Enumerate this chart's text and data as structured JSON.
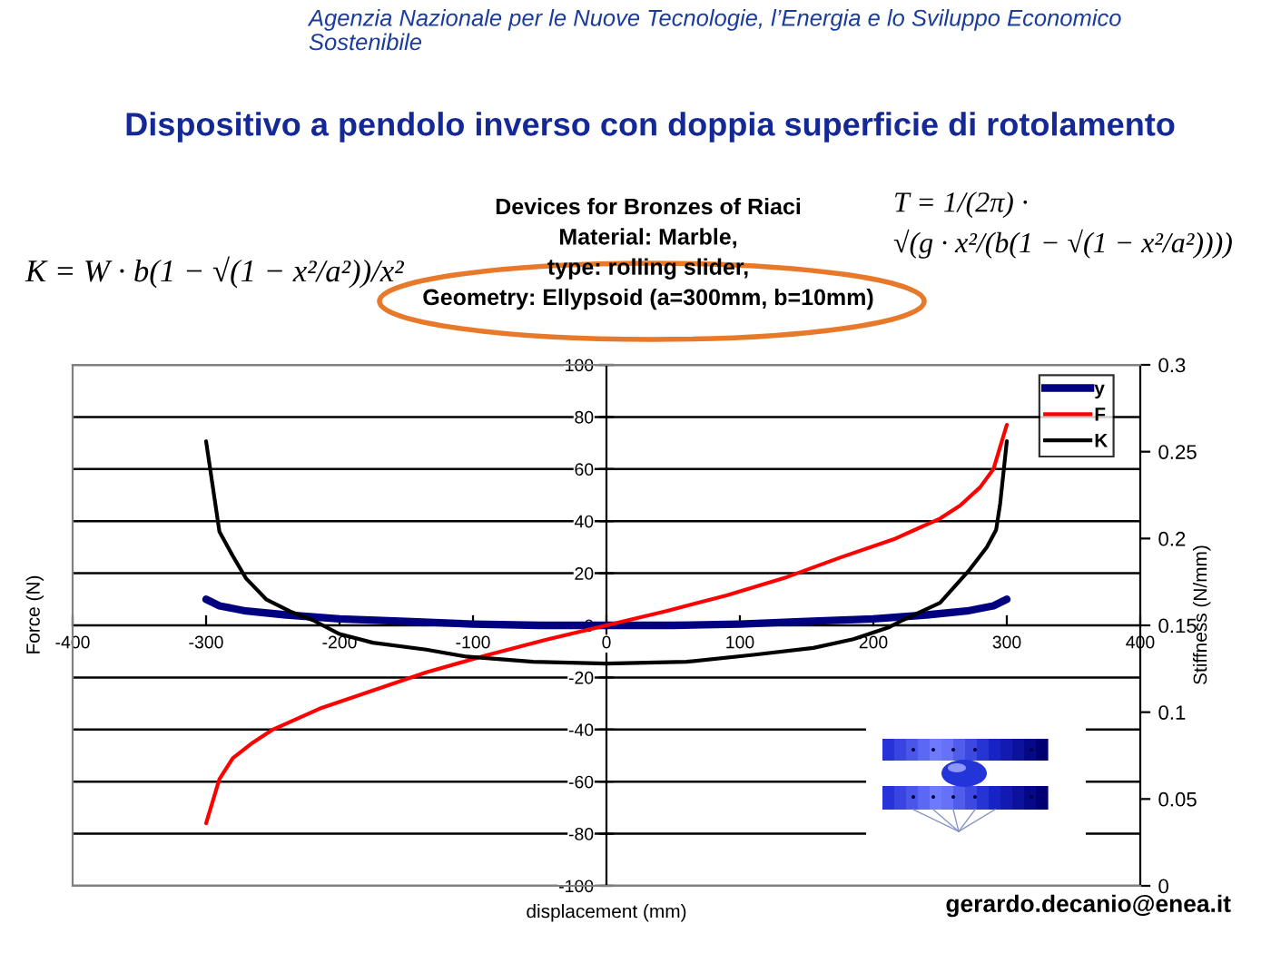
{
  "chart_data": {
    "type": "line",
    "title": "Dispositivo a pendolo inverso con doppia superficie di rotolamento",
    "xlabel": "displacement (mm)",
    "ylabel": "Force (N)",
    "y2label": "Stiffness (N/mm)",
    "annotations": [
      "Agenzia Nazionale per le Nuove Tecnologie, l’Energia e lo Sviluppo Economico\nSostenibile",
      "K = W · b(1 − √(1 − x²/a²))/x²",
      "Devices for Bronzes of Riaci\nMaterial: Marble,\ntype: rolling slider,\nGeometry: Ellypsoid (a=300mm, b=10mm)",
      "T = 1/(2π) ·\n√(g · x²/(b(1 − √(1 − x²/a²))))",
      "gerardo.decanio@enea.it"
    ],
    "xlim": [
      -400,
      400
    ],
    "xticks": [
      -400,
      -300,
      -200,
      -100,
      0,
      100,
      200,
      300,
      400
    ],
    "ylim": [
      -100,
      100
    ],
    "yticks": [
      -100,
      -80,
      -60,
      -40,
      -20,
      0,
      20,
      40,
      60,
      80,
      100
    ],
    "y2lim": [
      0,
      0.3
    ],
    "y2ticks": [
      0,
      0.05,
      0.1,
      0.15,
      0.2,
      0.25,
      0.3
    ],
    "grid": "y",
    "legend": "top right",
    "series": [
      {
        "name": "y",
        "color": "#000080",
        "x": [
          -300,
          -290,
          -270,
          -240,
          -200,
          -150,
          -100,
          -50,
          0,
          50,
          100,
          150,
          200,
          240,
          270,
          290,
          300
        ],
        "values": [
          10,
          7.5,
          5.5,
          4,
          2.5,
          1.5,
          0.5,
          0,
          0,
          0,
          0.5,
          1.5,
          2.5,
          4,
          5.5,
          7.5,
          10
        ]
      },
      {
        "name": "F",
        "color": "#ff0000",
        "x": [
          -300,
          -290,
          -280,
          -265,
          -250,
          -215,
          -175,
          -135,
          -90,
          -45,
          0,
          45,
          90,
          135,
          175,
          215,
          250,
          265,
          280,
          290,
          300
        ],
        "values": [
          -76,
          -59,
          -51,
          -45,
          -40,
          -32,
          -25,
          -18,
          -11.5,
          -5.5,
          0,
          5.5,
          11.5,
          18.5,
          26,
          33,
          41,
          46,
          53,
          60,
          77
        ]
      },
      {
        "name": "K",
        "color": "#000000",
        "axis": "y2",
        "x": [
          -300,
          -290,
          -280,
          -270,
          -255,
          -237,
          -220,
          -200,
          -175,
          -135,
          -105,
          -55,
          0,
          60,
          110,
          155,
          185,
          212,
          222,
          250,
          271,
          285,
          292,
          295,
          300
        ],
        "values": [
          0.256,
          0.204,
          0.19,
          0.177,
          0.165,
          0.158,
          0.153,
          0.145,
          0.14,
          0.136,
          0.132,
          0.129,
          0.128,
          0.129,
          0.133,
          0.137,
          0.142,
          0.149,
          0.153,
          0.163,
          0.181,
          0.195,
          0.205,
          0.22,
          0.256
        ]
      }
    ]
  }
}
